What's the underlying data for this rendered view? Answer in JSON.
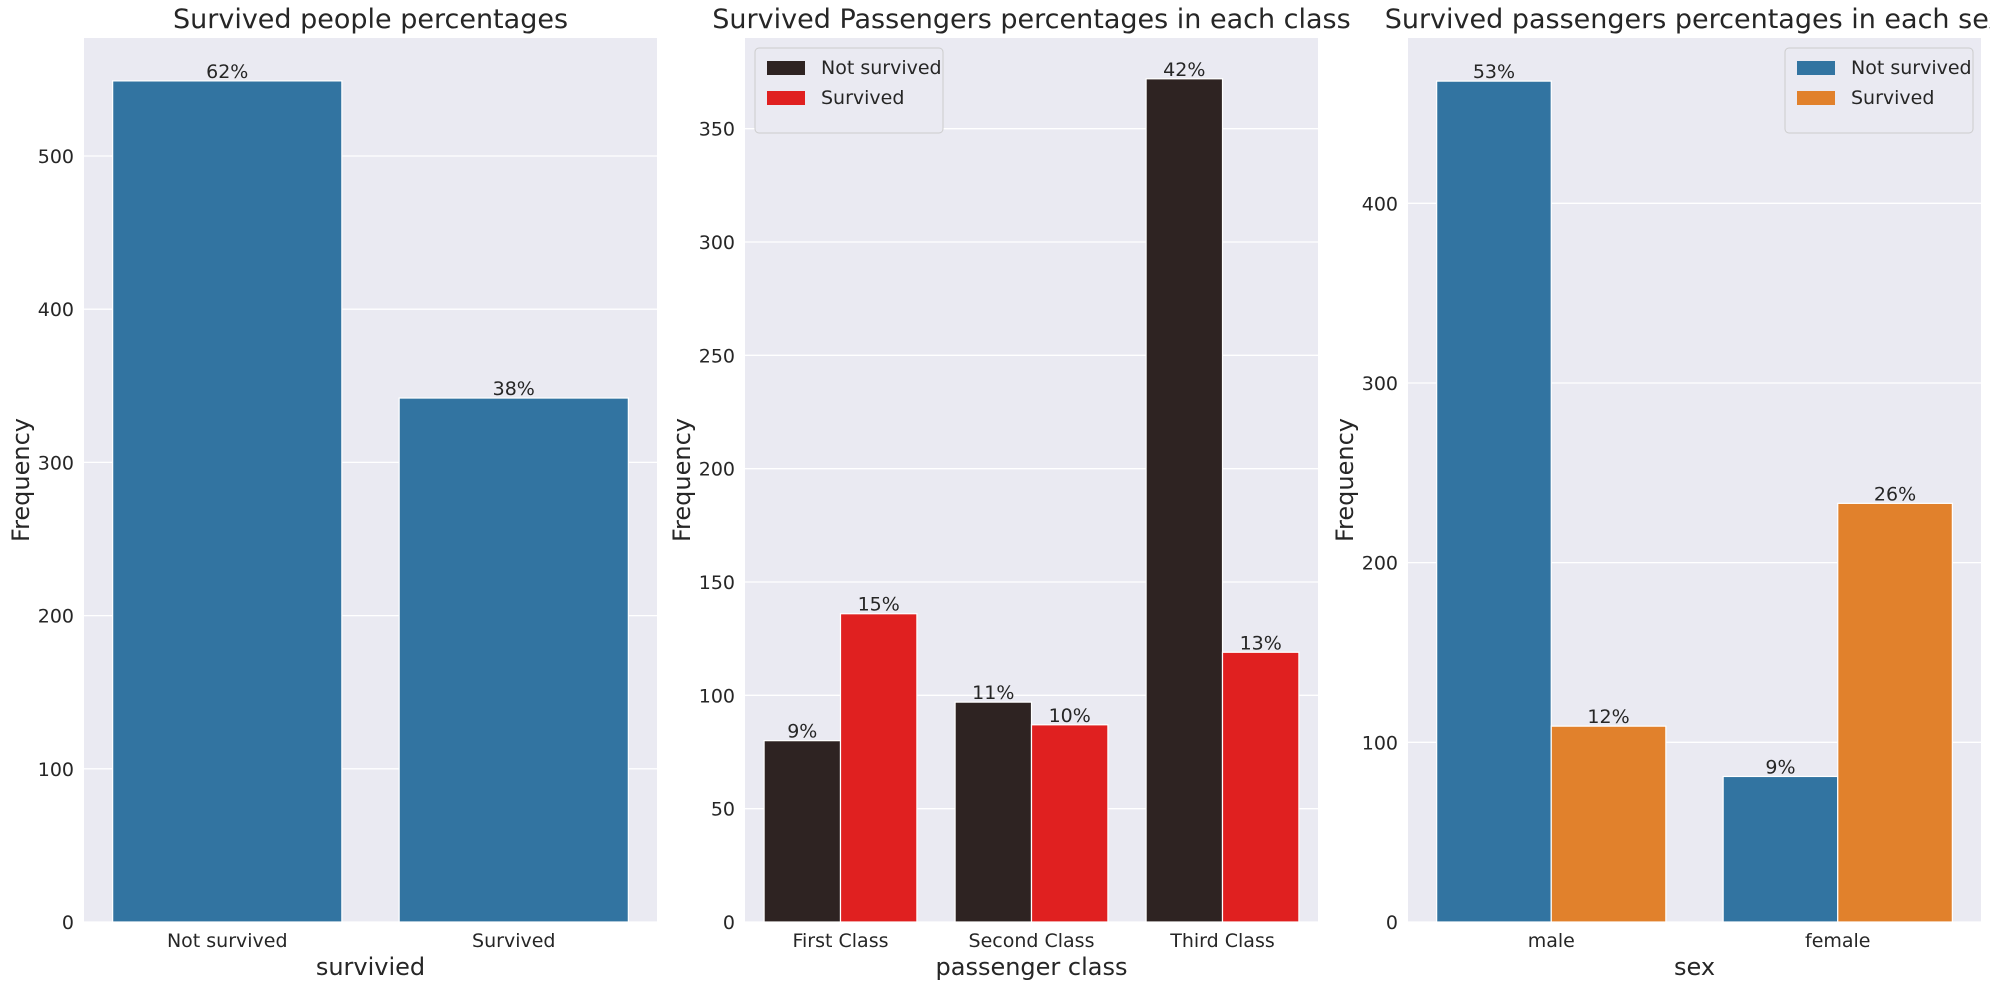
{
  "chart_data": [
    {
      "type": "bar",
      "title": "Survived people percentages",
      "xlabel": "survivied",
      "ylabel": "Frequency",
      "ylim": [
        0,
        577
      ],
      "yticks": [
        0,
        100,
        200,
        300,
        400,
        500
      ],
      "grid": true,
      "legend": null,
      "categories": [
        "Not survived",
        "Survived"
      ],
      "series": [
        {
          "values": [
            549,
            342
          ],
          "color": "#3274a1",
          "labels": [
            "62%",
            "38%"
          ]
        }
      ]
    },
    {
      "type": "bar",
      "title": "Survived Passengers percentages in each class",
      "xlabel": "passenger class",
      "ylabel": "Frequency",
      "ylim": [
        0,
        390
      ],
      "yticks": [
        0,
        50,
        100,
        150,
        200,
        250,
        300,
        350
      ],
      "grid": true,
      "legend": "top-left",
      "categories": [
        "First Class",
        "Second Class",
        "Third Class"
      ],
      "series": [
        {
          "name": "Not survived",
          "values": [
            80,
            97,
            372
          ],
          "color": "#2e2322",
          "labels": [
            "9%",
            "11%",
            "42%"
          ]
        },
        {
          "name": "Survived",
          "values": [
            136,
            87,
            119
          ],
          "color": "#e02020",
          "labels": [
            "15%",
            "10%",
            "13%"
          ]
        }
      ]
    },
    {
      "type": "bar",
      "title": "Survived passengers percentages in each sex",
      "xlabel": "sex",
      "ylabel": "Frequency",
      "ylim": [
        0,
        492
      ],
      "yticks": [
        0,
        100,
        200,
        300,
        400
      ],
      "grid": true,
      "legend": "top-right",
      "categories": [
        "male",
        "female"
      ],
      "series": [
        {
          "name": "Not survived",
          "values": [
            468,
            81
          ],
          "color": "#3274a1",
          "labels": [
            "53%",
            "9%"
          ]
        },
        {
          "name": "Survived",
          "values": [
            109,
            233
          ],
          "color": "#e1812c",
          "labels": [
            "12%",
            "26%"
          ]
        }
      ]
    }
  ]
}
